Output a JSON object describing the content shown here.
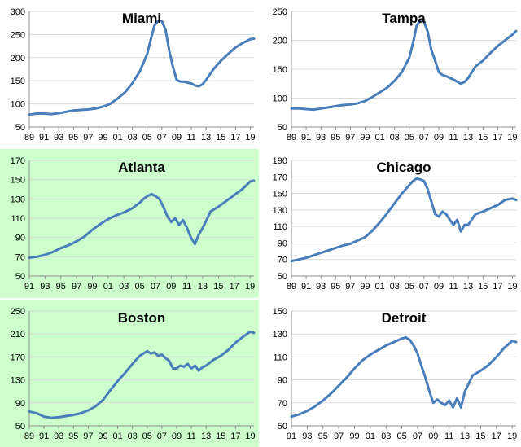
{
  "chart_data": [
    {
      "type": "line",
      "title": "Miami",
      "background": "#ffffff",
      "line_color": "#4a7ebb",
      "xlabel": "",
      "ylabel": "",
      "xlim": [
        1989,
        2019.5
      ],
      "ylim": [
        50,
        300
      ],
      "yticks": [
        50,
        100,
        150,
        200,
        250,
        300
      ],
      "xticks": [
        1989,
        1991,
        1993,
        1995,
        1997,
        1999,
        2001,
        2003,
        2005,
        2007,
        2009,
        2011,
        2013,
        2015,
        2017,
        2019
      ],
      "xtick_labels": [
        "89",
        "91",
        "93",
        "95",
        "97",
        "99",
        "01",
        "03",
        "05",
        "07",
        "09",
        "11",
        "13",
        "15",
        "17",
        "19"
      ],
      "grid": "horizontal",
      "series": [
        {
          "x": [
            1989,
            1990,
            1991,
            1992,
            1993,
            1994,
            1995,
            1996,
            1997,
            1998,
            1999,
            2000,
            2001,
            2002,
            2003,
            2004,
            2005,
            2005.5,
            2006,
            2006.5,
            2007,
            2007.5,
            2008,
            2008.5,
            2009,
            2009.5,
            2010,
            2010.5,
            2011,
            2011.5,
            2012,
            2012.5,
            2013,
            2014,
            2015,
            2016,
            2017,
            2018,
            2019,
            2019.5
          ],
          "y": [
            77,
            79,
            79,
            78,
            80,
            83,
            86,
            87,
            88,
            90,
            94,
            100,
            112,
            125,
            145,
            170,
            208,
            240,
            270,
            280,
            279,
            260,
            215,
            180,
            152,
            148,
            148,
            146,
            144,
            140,
            138,
            142,
            152,
            175,
            193,
            208,
            222,
            232,
            240,
            241
          ]
        }
      ]
    },
    {
      "type": "line",
      "title": "Tampa",
      "background": "#ffffff",
      "line_color": "#4a7ebb",
      "xlabel": "",
      "ylabel": "",
      "xlim": [
        1989,
        2019.5
      ],
      "ylim": [
        50,
        250
      ],
      "yticks": [
        50,
        100,
        150,
        200,
        250
      ],
      "xticks": [
        1989,
        1991,
        1993,
        1995,
        1997,
        1999,
        2001,
        2003,
        2005,
        2007,
        2009,
        2011,
        2013,
        2015,
        2017,
        2019
      ],
      "xtick_labels": [
        "89",
        "91",
        "93",
        "95",
        "97",
        "99",
        "01",
        "03",
        "05",
        "07",
        "09",
        "11",
        "13",
        "15",
        "17",
        "19"
      ],
      "grid": "horizontal",
      "series": [
        {
          "x": [
            1989,
            1990,
            1991,
            1992,
            1993,
            1994,
            1995,
            1996,
            1997,
            1998,
            1999,
            2000,
            2001,
            2002,
            2003,
            2004,
            2005,
            2005.5,
            2006,
            2006.5,
            2007,
            2007.5,
            2008,
            2008.5,
            2009,
            2009.5,
            2010,
            2011,
            2012,
            2012.5,
            2013,
            2014,
            2015,
            2016,
            2017,
            2018,
            2019,
            2019.5
          ],
          "y": [
            82,
            82,
            81,
            80,
            82,
            84,
            86,
            88,
            89,
            91,
            95,
            102,
            110,
            118,
            130,
            145,
            170,
            195,
            225,
            235,
            232,
            215,
            183,
            165,
            145,
            140,
            138,
            132,
            125,
            128,
            135,
            155,
            165,
            178,
            190,
            200,
            210,
            216
          ]
        }
      ]
    },
    {
      "type": "line",
      "title": "Atlanta",
      "background": "#ccffcc",
      "line_color": "#4a7ebb",
      "xlabel": "",
      "ylabel": "",
      "xlim": [
        1991,
        2019.5
      ],
      "ylim": [
        50,
        170
      ],
      "yticks": [
        50,
        70,
        90,
        110,
        130,
        150,
        170
      ],
      "xticks": [
        1991,
        1993,
        1995,
        1997,
        1999,
        2001,
        2003,
        2005,
        2007,
        2009,
        2011,
        2013,
        2015,
        2017,
        2019
      ],
      "xtick_labels": [
        "91",
        "93",
        "95",
        "97",
        "99",
        "01",
        "03",
        "05",
        "07",
        "09",
        "11",
        "13",
        "15",
        "17",
        "19"
      ],
      "grid": "horizontal",
      "series": [
        {
          "x": [
            1991,
            1992,
            1993,
            1994,
            1995,
            1996,
            1997,
            1998,
            1999,
            2000,
            2001,
            2002,
            2003,
            2004,
            2005,
            2005.5,
            2006,
            2006.5,
            2007,
            2007.5,
            2008,
            2008.5,
            2009,
            2009.5,
            2010,
            2010.5,
            2011,
            2011.5,
            2012,
            2012.5,
            2013,
            2014,
            2015,
            2016,
            2017,
            2018,
            2019,
            2019.5
          ],
          "y": [
            69,
            70,
            72,
            75,
            79,
            82,
            86,
            91,
            98,
            104,
            109,
            113,
            116,
            120,
            126,
            130,
            133,
            135,
            133,
            130,
            122,
            112,
            106,
            110,
            103,
            108,
            100,
            90,
            83,
            93,
            100,
            117,
            122,
            128,
            134,
            140,
            148,
            149
          ]
        }
      ]
    },
    {
      "type": "line",
      "title": "Chicago",
      "background": "#ffffff",
      "line_color": "#4a7ebb",
      "xlabel": "",
      "ylabel": "",
      "xlim": [
        1989,
        2019.5
      ],
      "ylim": [
        50,
        190
      ],
      "yticks": [
        50,
        70,
        90,
        110,
        130,
        150,
        170,
        190
      ],
      "xticks": [
        1989,
        1991,
        1993,
        1995,
        1997,
        1999,
        2001,
        2003,
        2005,
        2007,
        2009,
        2011,
        2013,
        2015,
        2017,
        2019
      ],
      "xtick_labels": [
        "89",
        "91",
        "93",
        "95",
        "97",
        "99",
        "01",
        "03",
        "05",
        "07",
        "09",
        "11",
        "13",
        "15",
        "17",
        "19"
      ],
      "grid": "horizontal",
      "series": [
        {
          "x": [
            1989,
            1990,
            1991,
            1992,
            1993,
            1994,
            1995,
            1996,
            1997,
            1998,
            1999,
            2000,
            2001,
            2002,
            2003,
            2004,
            2005,
            2005.5,
            2006,
            2006.5,
            2007,
            2007.5,
            2008,
            2008.5,
            2009,
            2009.5,
            2010,
            2010.5,
            2011,
            2011.5,
            2012,
            2012.5,
            2013,
            2014,
            2015,
            2016,
            2017,
            2018,
            2019,
            2019.5
          ],
          "y": [
            68,
            70,
            72,
            75,
            78,
            81,
            84,
            87,
            89,
            93,
            97,
            105,
            115,
            126,
            138,
            150,
            160,
            165,
            168,
            167,
            165,
            155,
            140,
            125,
            122,
            128,
            125,
            118,
            112,
            118,
            104,
            112,
            112,
            125,
            128,
            132,
            136,
            142,
            144,
            142
          ]
        }
      ]
    },
    {
      "type": "line",
      "title": "Boston",
      "background": "#ccffcc",
      "line_color": "#4a7ebb",
      "xlabel": "",
      "ylabel": "",
      "xlim": [
        1989,
        2019.5
      ],
      "ylim": [
        50,
        250
      ],
      "yticks": [
        50,
        90,
        130,
        170,
        210,
        250
      ],
      "xticks": [
        1989,
        1991,
        1993,
        1995,
        1997,
        1999,
        2001,
        2003,
        2005,
        2007,
        2009,
        2011,
        2013,
        2015,
        2017,
        2019
      ],
      "xtick_labels": [
        "89",
        "91",
        "93",
        "95",
        "97",
        "99",
        "01",
        "03",
        "05",
        "07",
        "09",
        "11",
        "13",
        "15",
        "17",
        "19"
      ],
      "grid": "horizontal",
      "series": [
        {
          "x": [
            1989,
            1990,
            1991,
            1992,
            1993,
            1994,
            1995,
            1996,
            1997,
            1998,
            1999,
            2000,
            2001,
            2002,
            2003,
            2004,
            2005,
            2005.5,
            2006,
            2006.5,
            2007,
            2007.5,
            2008,
            2008.5,
            2009,
            2009.5,
            2010,
            2010.5,
            2011,
            2011.5,
            2012,
            2012.5,
            2013,
            2014,
            2015,
            2016,
            2017,
            2018,
            2019,
            2019.5
          ],
          "y": [
            75,
            72,
            66,
            64,
            65,
            67,
            69,
            72,
            77,
            84,
            95,
            112,
            128,
            142,
            158,
            172,
            180,
            176,
            178,
            172,
            174,
            168,
            163,
            150,
            150,
            155,
            153,
            158,
            150,
            155,
            146,
            152,
            155,
            165,
            172,
            182,
            195,
            205,
            214,
            212
          ]
        }
      ]
    },
    {
      "type": "line",
      "title": "Detroit",
      "background": "#ffffff",
      "line_color": "#4a7ebb",
      "xlabel": "",
      "ylabel": "",
      "xlim": [
        1991,
        2019.5
      ],
      "ylim": [
        50,
        150
      ],
      "yticks": [
        50,
        70,
        90,
        110,
        130,
        150
      ],
      "xticks": [
        1991,
        1993,
        1995,
        1997,
        1999,
        2001,
        2003,
        2005,
        2007,
        2009,
        2011,
        2013,
        2015,
        2017,
        2019
      ],
      "xtick_labels": [
        "91",
        "93",
        "95",
        "97",
        "99",
        "01",
        "03",
        "05",
        "07",
        "09",
        "11",
        "13",
        "15",
        "17",
        "19"
      ],
      "grid": "horizontal",
      "series": [
        {
          "x": [
            1991,
            1992,
            1993,
            1994,
            1995,
            1996,
            1997,
            1998,
            1999,
            2000,
            2001,
            2002,
            2003,
            2004,
            2005,
            2005.5,
            2006,
            2006.5,
            2007,
            2007.5,
            2008,
            2008.5,
            2009,
            2009.5,
            2010,
            2010.5,
            2011,
            2011.5,
            2012,
            2012.5,
            2013,
            2014,
            2015,
            2016,
            2017,
            2018,
            2019,
            2019.5
          ],
          "y": [
            58,
            60,
            63,
            67,
            72,
            78,
            85,
            92,
            100,
            107,
            112,
            116,
            120,
            123,
            126,
            127,
            125,
            120,
            113,
            102,
            92,
            80,
            70,
            73,
            70,
            68,
            72,
            66,
            74,
            66,
            80,
            94,
            98,
            103,
            110,
            118,
            124,
            123
          ]
        }
      ]
    }
  ]
}
